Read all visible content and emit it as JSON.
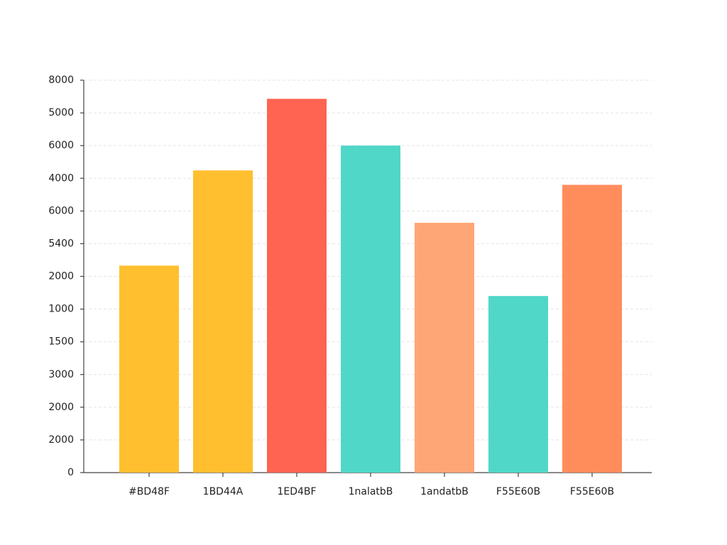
{
  "chart_data": {
    "type": "bar",
    "categories": [
      "#BD48F",
      "1BD44A",
      "1ED4BF",
      "1nalatbB",
      "1andatbB",
      "F55E60B",
      "F55E60B"
    ],
    "values": [
      6.33,
      9.24,
      11.43,
      10.0,
      7.64,
      5.4,
      8.8
    ],
    "colors": [
      "#FFBF2F",
      "#FFBF2F",
      "#FF6352",
      "#50D7C8",
      "#FFA676",
      "#50D7C8",
      "#FF8D5C"
    ],
    "ylim": [
      0,
      12
    ],
    "y_labels": [
      "8000",
      "5000",
      "6000",
      "4000",
      "6000",
      "5400",
      "2000",
      "1000",
      "1500",
      "3000",
      "2000",
      "2000",
      "0"
    ],
    "grid": true
  }
}
